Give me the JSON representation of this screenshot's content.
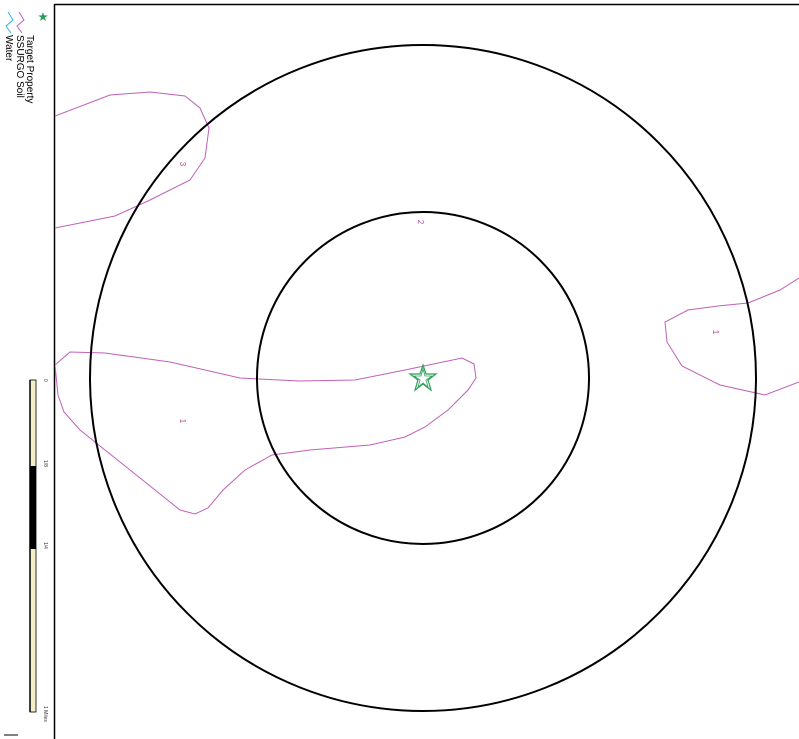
{
  "legend": {
    "items": [
      {
        "label": "Target Property",
        "icon": "star-icon",
        "color": "#2e9e5b"
      },
      {
        "label": "SSURGO Soil",
        "icon": "soil-line-icon",
        "color": "#c060b8"
      },
      {
        "label": "Water",
        "icon": "water-line-icon",
        "color": "#2cb5e8"
      }
    ]
  },
  "soil_labels": [
    "1",
    "2",
    "3",
    "1"
  ],
  "scale_bar": {
    "ticks": [
      "0",
      "1/8",
      "1/4",
      "1 Miles"
    ]
  },
  "colors": {
    "buffer_ring": "#000000",
    "soil_boundary": "#c060b8",
    "target_property": "#2e9e5b",
    "scale_fill": "#f2efc6",
    "frame": "#000000"
  }
}
